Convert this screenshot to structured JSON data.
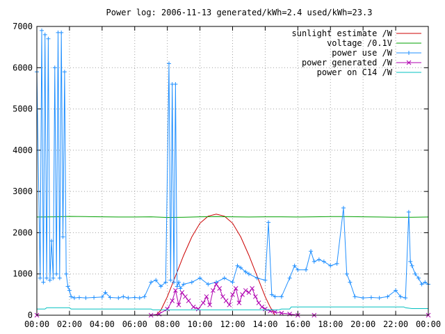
{
  "chart_data": {
    "type": "line",
    "title": "Power log: 2006-11-13 generated/kWh=2.4 used/kWh=23.3",
    "xlabel": "",
    "ylabel": "",
    "xlim": [
      0,
      24
    ],
    "ylim": [
      0,
      7000
    ],
    "grid": true,
    "legend_position": "top-right",
    "x_ticks": [
      "00:00",
      "02:00",
      "04:00",
      "06:00",
      "08:00",
      "10:00",
      "12:00",
      "14:00",
      "16:00",
      "18:00",
      "20:00",
      "22:00",
      "00:00"
    ],
    "y_ticks": [
      "0",
      "1000",
      "2000",
      "3000",
      "4000",
      "5000",
      "6000",
      "7000"
    ],
    "series": [
      {
        "name": "sunlight estimate /W",
        "color": "#cc0000",
        "style": "line",
        "x": [
          0,
          7.3,
          7.6,
          8.0,
          8.5,
          9.0,
          9.5,
          10.0,
          10.5,
          11.0,
          11.5,
          12.0,
          12.5,
          13.0,
          13.5,
          14.0,
          14.3,
          14.6,
          24
        ],
        "y": [
          0,
          0,
          120,
          450,
          950,
          1450,
          1900,
          2230,
          2400,
          2450,
          2400,
          2230,
          1900,
          1450,
          950,
          450,
          200,
          0,
          0
        ]
      },
      {
        "name": "voltage /0.1V",
        "color": "#00a000",
        "style": "line",
        "x": [
          0,
          1,
          2,
          3,
          4,
          5,
          6,
          7,
          8,
          9,
          10,
          11,
          12,
          13,
          14,
          15,
          16,
          17,
          18,
          19,
          20,
          21,
          22,
          23,
          24
        ],
        "y": [
          2380,
          2385,
          2395,
          2390,
          2385,
          2380,
          2380,
          2385,
          2370,
          2375,
          2385,
          2390,
          2385,
          2380,
          2385,
          2385,
          2380,
          2385,
          2390,
          2390,
          2385,
          2380,
          2375,
          2375,
          2380
        ]
      },
      {
        "name": "power use /W",
        "color": "#1f8fff",
        "style": "linespoints-plus",
        "x": [
          0,
          0.2,
          0.3,
          0.4,
          0.5,
          0.6,
          0.7,
          0.8,
          0.9,
          1.0,
          1.1,
          1.2,
          1.3,
          1.4,
          1.5,
          1.6,
          1.7,
          1.8,
          1.9,
          2.0,
          2.1,
          2.3,
          2.6,
          3.0,
          3.5,
          4.0,
          4.2,
          4.5,
          5.0,
          5.3,
          5.6,
          6.0,
          6.3,
          6.6,
          7.0,
          7.3,
          7.6,
          7.9,
          8.1,
          8.2,
          8.3,
          8.4,
          8.5,
          8.6,
          8.7,
          8.8,
          9.0,
          9.5,
          10.0,
          10.5,
          11.0,
          11.5,
          12.0,
          12.3,
          12.5,
          12.8,
          13.0,
          13.5,
          14.0,
          14.2,
          14.4,
          14.6,
          15.0,
          15.5,
          15.8,
          16.0,
          16.5,
          16.8,
          17.0,
          17.3,
          17.6,
          18.0,
          18.4,
          18.8,
          19.0,
          19.2,
          19.5,
          20.0,
          20.5,
          21.0,
          21.5,
          22.0,
          22.3,
          22.6,
          22.8,
          22.9,
          23.0,
          23.2,
          23.4,
          23.6,
          23.8,
          24
        ],
        "y": [
          5900,
          900,
          6900,
          800,
          6800,
          900,
          6700,
          850,
          1800,
          900,
          6000,
          1000,
          6850,
          900,
          6850,
          1900,
          5900,
          1000,
          700,
          600,
          450,
          420,
          430,
          420,
          430,
          440,
          550,
          430,
          420,
          450,
          420,
          430,
          420,
          450,
          800,
          850,
          700,
          800,
          6100,
          850,
          5600,
          800,
          5600,
          700,
          800,
          650,
          750,
          800,
          900,
          750,
          800,
          900,
          800,
          1200,
          1150,
          1050,
          1000,
          900,
          850,
          2250,
          500,
          450,
          450,
          900,
          1200,
          1100,
          1100,
          1550,
          1300,
          1350,
          1300,
          1200,
          1250,
          2600,
          1000,
          800,
          450,
          420,
          430,
          420,
          450,
          600,
          450,
          420,
          2500,
          1300,
          1200,
          1000,
          900,
          750,
          800,
          750
        ]
      },
      {
        "name": "power generated /W",
        "color": "#b000b0",
        "style": "linespoints-cross",
        "x": [
          0,
          7.0,
          7.5,
          8.0,
          8.3,
          8.5,
          8.7,
          8.9,
          9.1,
          9.3,
          9.6,
          9.9,
          10.2,
          10.4,
          10.6,
          10.8,
          11.0,
          11.2,
          11.4,
          11.6,
          11.8,
          12.0,
          12.2,
          12.4,
          12.6,
          12.8,
          13.0,
          13.2,
          13.4,
          13.6,
          13.8,
          14.0,
          14.3,
          14.6,
          15.0,
          15.5,
          16.0,
          17.0,
          24
        ],
        "y": [
          0,
          0,
          30,
          150,
          350,
          600,
          250,
          550,
          450,
          350,
          200,
          150,
          300,
          450,
          250,
          600,
          750,
          650,
          450,
          350,
          250,
          500,
          650,
          300,
          500,
          600,
          550,
          650,
          450,
          300,
          200,
          150,
          100,
          80,
          50,
          30,
          0,
          0,
          0
        ]
      },
      {
        "name": "power on C14 /W",
        "color": "#00c0c0",
        "style": "line",
        "x": [
          0,
          0.5,
          0.6,
          2.0,
          2.1,
          4.0,
          6.0,
          7.0,
          7.1,
          8.0,
          10.0,
          12.0,
          14.0,
          14.8,
          15.0,
          15.5,
          15.6,
          18.0,
          20.0,
          22.0,
          22.5,
          22.6,
          23.0,
          24
        ],
        "y": [
          150,
          150,
          180,
          180,
          150,
          150,
          150,
          150,
          130,
          130,
          130,
          130,
          130,
          130,
          150,
          150,
          200,
          200,
          200,
          200,
          200,
          180,
          160,
          160
        ]
      }
    ]
  }
}
